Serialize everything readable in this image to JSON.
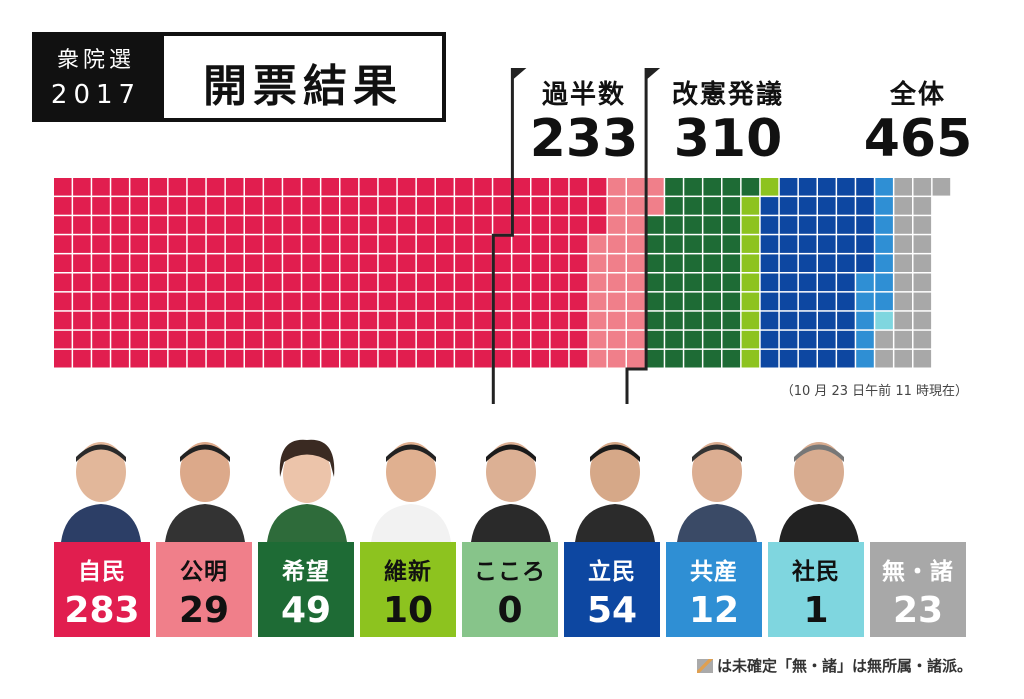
{
  "header": {
    "title_top": "衆院選",
    "title_year": "2017",
    "title_main": "開票結果"
  },
  "milestones": [
    {
      "label": "過半数",
      "value": 233
    },
    {
      "label": "改憲発議",
      "value": 310
    },
    {
      "label": "全体",
      "value": 465
    }
  ],
  "timestamp": "（10 月 23 日午前 11 時現在）",
  "footnote": "は未確定「無・諸」は無所属・諸派。",
  "chart_data": {
    "type": "waffle",
    "total_seats": 465,
    "rows": 10,
    "series": [
      {
        "name": "自民",
        "value": 283,
        "color": "#e11e4f"
      },
      {
        "name": "公明",
        "value": 29,
        "color": "#f07f8a"
      },
      {
        "name": "希望",
        "value": 49,
        "color": "#1e6b35"
      },
      {
        "name": "維新",
        "value": 10,
        "color": "#8dc31f"
      },
      {
        "name": "こころ",
        "value": 0,
        "color": "#87c48a"
      },
      {
        "name": "立民",
        "value": 54,
        "color": "#0d47a1"
      },
      {
        "name": "共産",
        "value": 12,
        "color": "#2f8fd4"
      },
      {
        "name": "社民",
        "value": 1,
        "color": "#7fd6df"
      },
      {
        "name": "無・諸",
        "value": 23,
        "color": "#a8a8a8"
      }
    ],
    "undecided_color": "#e0a050"
  }
}
